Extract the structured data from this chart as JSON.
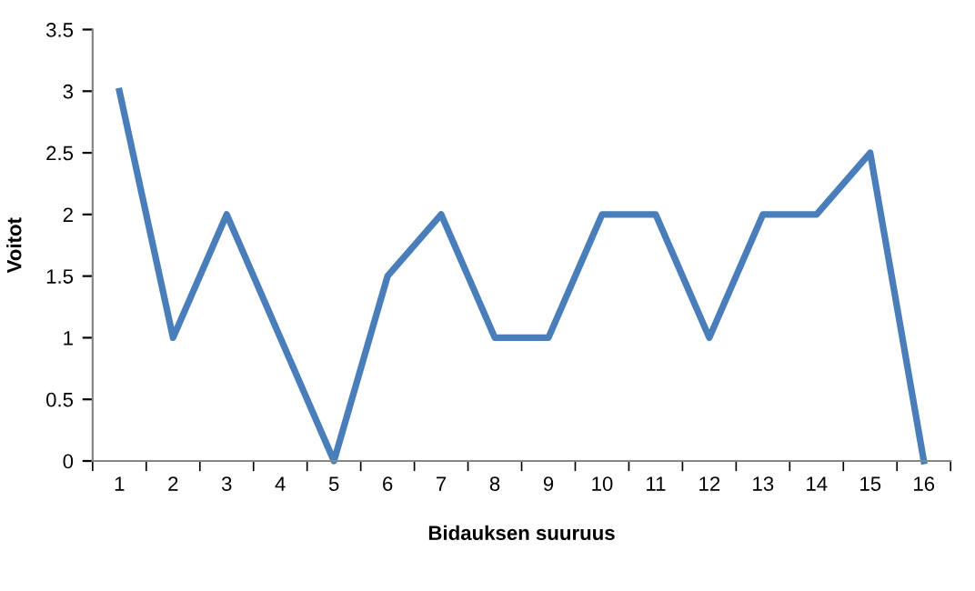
{
  "chart_data": {
    "type": "line",
    "xlabel": "Bidauksen suuruus",
    "ylabel": "Voitot",
    "categories": [
      "1",
      "2",
      "3",
      "4",
      "5",
      "6",
      "7",
      "8",
      "9",
      "10",
      "11",
      "12",
      "13",
      "14",
      "15",
      "16"
    ],
    "series": [
      {
        "color": "#4a7ebb",
        "values": [
          3,
          1,
          2,
          1,
          0,
          1.5,
          2,
          1,
          1,
          2,
          2,
          1,
          2,
          2,
          2.5,
          0
        ]
      }
    ],
    "ylim": [
      0,
      3.5
    ],
    "yticks": [
      0,
      0.5,
      1,
      1.5,
      2,
      2.5,
      3,
      3.5
    ],
    "grid": false,
    "legend": false,
    "marker": "none",
    "line_style": "solid"
  }
}
